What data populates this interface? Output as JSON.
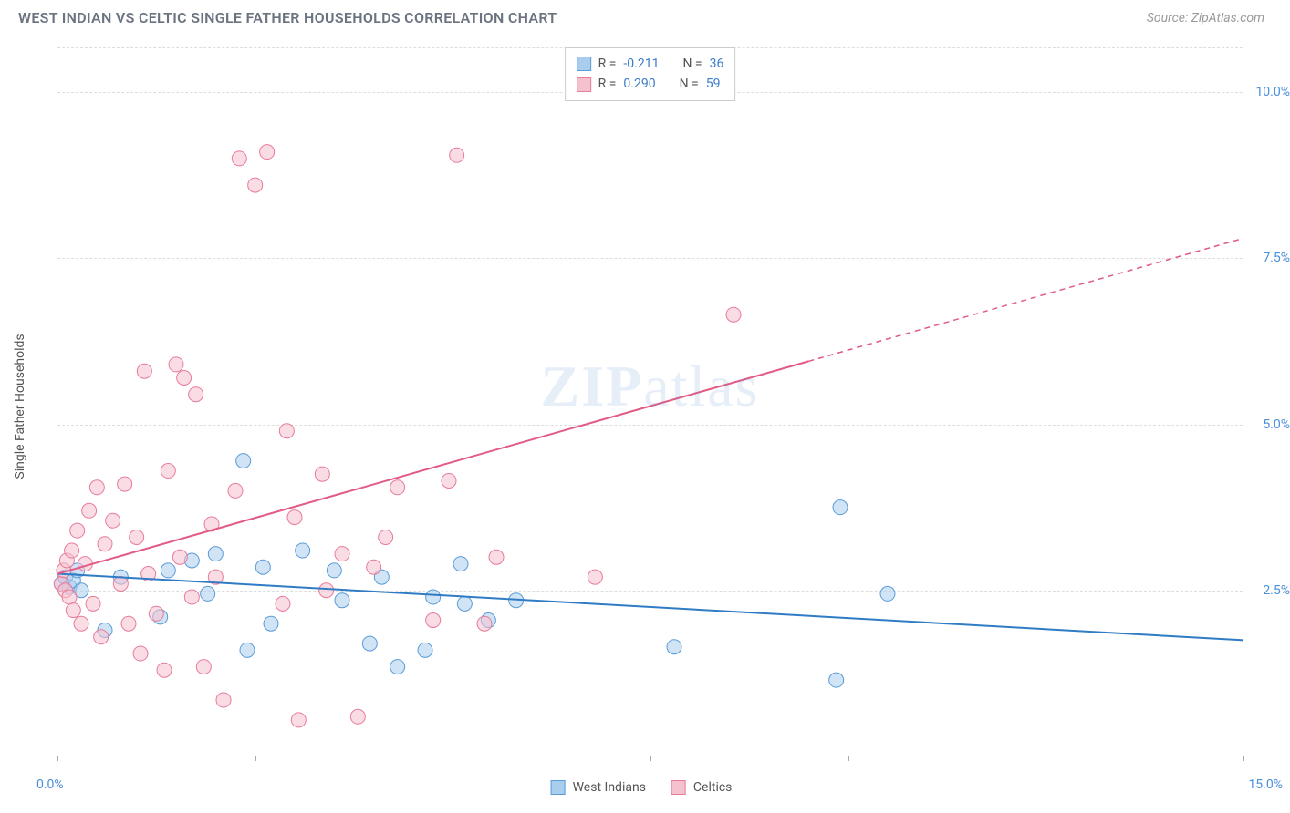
{
  "title": "WEST INDIAN VS CELTIC SINGLE FATHER HOUSEHOLDS CORRELATION CHART",
  "source": "Source: ZipAtlas.com",
  "watermark_bold": "ZIP",
  "watermark_rest": "atlas",
  "yaxis_title": "Single Father Households",
  "chart": {
    "type": "scatter",
    "background_color": "#ffffff",
    "grid_color": "#dddddd",
    "axis_color": "#aaaaaa",
    "tick_label_color": "#4a8fd8",
    "xlim": [
      0,
      15
    ],
    "ylim": [
      0,
      10.7
    ],
    "xtick_positions": [
      0,
      2.5,
      5,
      7.5,
      10,
      12.5,
      15
    ],
    "xtick_labels_shown": {
      "min": "0.0%",
      "max": "15.0%"
    },
    "ytick_positions": [
      2.5,
      5.0,
      7.5,
      10.0
    ],
    "ytick_labels": [
      "2.5%",
      "5.0%",
      "7.5%",
      "10.0%"
    ],
    "marker_radius": 8,
    "marker_opacity": 0.55,
    "line_width": 2,
    "series": [
      {
        "key": "west_indians",
        "label": "West Indians",
        "color_fill": "#a9cdee",
        "color_stroke": "#5a9bd8",
        "line_color": "#2f7cc4",
        "R": "-0.211",
        "N": "36",
        "trend": {
          "x1": 0,
          "y1": 2.75,
          "x2": 15,
          "y2": 1.75,
          "dashed_from_x": null
        },
        "points": [
          [
            0.05,
            2.6
          ],
          [
            0.1,
            2.7
          ],
          [
            0.15,
            2.55
          ],
          [
            0.2,
            2.65
          ],
          [
            0.25,
            2.8
          ],
          [
            0.3,
            2.5
          ],
          [
            0.6,
            1.9
          ],
          [
            0.8,
            2.7
          ],
          [
            1.3,
            2.1
          ],
          [
            1.4,
            2.8
          ],
          [
            1.7,
            2.95
          ],
          [
            1.9,
            2.45
          ],
          [
            2.0,
            3.05
          ],
          [
            2.35,
            4.45
          ],
          [
            2.4,
            1.6
          ],
          [
            2.6,
            2.85
          ],
          [
            2.7,
            2.0
          ],
          [
            3.1,
            3.1
          ],
          [
            3.5,
            2.8
          ],
          [
            3.6,
            2.35
          ],
          [
            3.95,
            1.7
          ],
          [
            4.1,
            2.7
          ],
          [
            4.3,
            1.35
          ],
          [
            4.65,
            1.6
          ],
          [
            4.75,
            2.4
          ],
          [
            5.1,
            2.9
          ],
          [
            5.15,
            2.3
          ],
          [
            5.45,
            2.05
          ],
          [
            5.8,
            2.35
          ],
          [
            7.8,
            1.65
          ],
          [
            9.85,
            1.15
          ],
          [
            9.9,
            3.75
          ],
          [
            10.5,
            2.45
          ]
        ]
      },
      {
        "key": "celtics",
        "label": "Celtics",
        "color_fill": "#f5c1cd",
        "color_stroke": "#e87b9a",
        "line_color": "#e35a84",
        "R": "0.290",
        "N": "59",
        "trend": {
          "x1": 0,
          "y1": 2.75,
          "x2": 15,
          "y2": 7.8,
          "dashed_from_x": 9.5
        },
        "points": [
          [
            0.05,
            2.6
          ],
          [
            0.08,
            2.8
          ],
          [
            0.1,
            2.5
          ],
          [
            0.12,
            2.95
          ],
          [
            0.15,
            2.4
          ],
          [
            0.18,
            3.1
          ],
          [
            0.2,
            2.2
          ],
          [
            0.25,
            3.4
          ],
          [
            0.3,
            2.0
          ],
          [
            0.35,
            2.9
          ],
          [
            0.4,
            3.7
          ],
          [
            0.45,
            2.3
          ],
          [
            0.5,
            4.05
          ],
          [
            0.55,
            1.8
          ],
          [
            0.6,
            3.2
          ],
          [
            0.7,
            3.55
          ],
          [
            0.8,
            2.6
          ],
          [
            0.85,
            4.1
          ],
          [
            0.9,
            2.0
          ],
          [
            1.0,
            3.3
          ],
          [
            1.05,
            1.55
          ],
          [
            1.1,
            5.8
          ],
          [
            1.15,
            2.75
          ],
          [
            1.25,
            2.15
          ],
          [
            1.35,
            1.3
          ],
          [
            1.4,
            4.3
          ],
          [
            1.5,
            5.9
          ],
          [
            1.55,
            3.0
          ],
          [
            1.6,
            5.7
          ],
          [
            1.7,
            2.4
          ],
          [
            1.75,
            5.45
          ],
          [
            1.85,
            1.35
          ],
          [
            1.95,
            3.5
          ],
          [
            2.0,
            2.7
          ],
          [
            2.1,
            0.85
          ],
          [
            2.25,
            4.0
          ],
          [
            2.3,
            9.0
          ],
          [
            2.5,
            8.6
          ],
          [
            2.65,
            9.1
          ],
          [
            2.85,
            2.3
          ],
          [
            2.9,
            4.9
          ],
          [
            3.0,
            3.6
          ],
          [
            3.05,
            0.55
          ],
          [
            3.35,
            4.25
          ],
          [
            3.4,
            2.5
          ],
          [
            3.6,
            3.05
          ],
          [
            3.8,
            0.6
          ],
          [
            4.0,
            2.85
          ],
          [
            4.15,
            3.3
          ],
          [
            4.3,
            4.05
          ],
          [
            4.75,
            2.05
          ],
          [
            4.95,
            4.15
          ],
          [
            5.05,
            9.05
          ],
          [
            5.4,
            2.0
          ],
          [
            5.55,
            3.0
          ],
          [
            6.8,
            2.7
          ],
          [
            8.55,
            6.65
          ]
        ]
      }
    ]
  },
  "stats_box": {
    "r_label": "R =",
    "n_label": "N ="
  }
}
